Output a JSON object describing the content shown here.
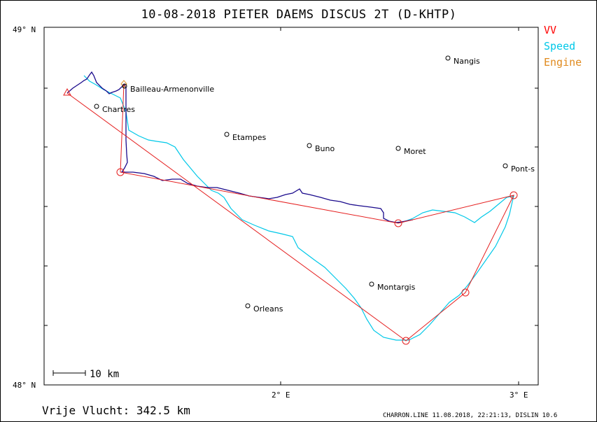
{
  "title": "10-08-2018   PIETER DAEMS   DISCUS 2T (D-KHTP)",
  "legend": [
    {
      "label": "VV",
      "color": "#ff0000"
    },
    {
      "label": "Speed",
      "color": "#00c8e8"
    },
    {
      "label": "Engine",
      "color": "#e08a1e"
    }
  ],
  "axes": {
    "lat_top": "49° N",
    "lat_bottom": "48° N",
    "lon_2": "2° E",
    "lon_3": "3° E"
  },
  "scale_label": "10 km",
  "footer": {
    "distance_text": "Vrije Vlucht:  342.5 km",
    "credit": "CHARRON.LINE 11.08.2018, 22:21:13, DISLIN 10.6"
  },
  "towns": [
    {
      "name": "Nangis"
    },
    {
      "name": "Bailleau-Armenonville"
    },
    {
      "name": "Chartres"
    },
    {
      "name": "Etampes"
    },
    {
      "name": "Buno"
    },
    {
      "name": "Moret"
    },
    {
      "name": "Pont-s"
    },
    {
      "name": "Montargis"
    },
    {
      "name": "Orleans"
    }
  ],
  "colors": {
    "task_line": "#e52020",
    "track": "#1a0a8c",
    "speed": "#00c8e8"
  }
}
